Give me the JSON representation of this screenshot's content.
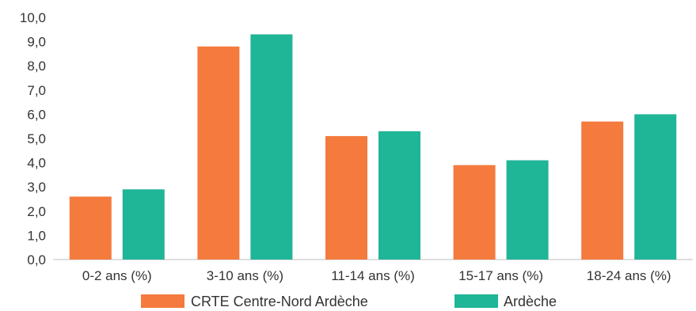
{
  "chart_data": {
    "type": "bar",
    "categories": [
      "0-2 ans (%)",
      "3-10 ans (%)",
      "11-14 ans (%)",
      "15-17 ans (%)",
      "18-24 ans (%)"
    ],
    "series": [
      {
        "name": "CRTE Centre-Nord Ardèche",
        "color": "#f47a3d",
        "values": [
          2.6,
          8.8,
          5.1,
          3.9,
          5.7
        ]
      },
      {
        "name": "Ardèche",
        "color": "#1fb597",
        "values": [
          2.9,
          9.3,
          5.3,
          4.1,
          6.0
        ]
      }
    ],
    "yticks": [
      "0,0",
      "1,0",
      "2,0",
      "3,0",
      "4,0",
      "5,0",
      "6,0",
      "7,0",
      "8,0",
      "9,0",
      "10,0"
    ],
    "ylim": [
      0,
      10
    ],
    "grid": false,
    "legend_position": "bottom"
  }
}
